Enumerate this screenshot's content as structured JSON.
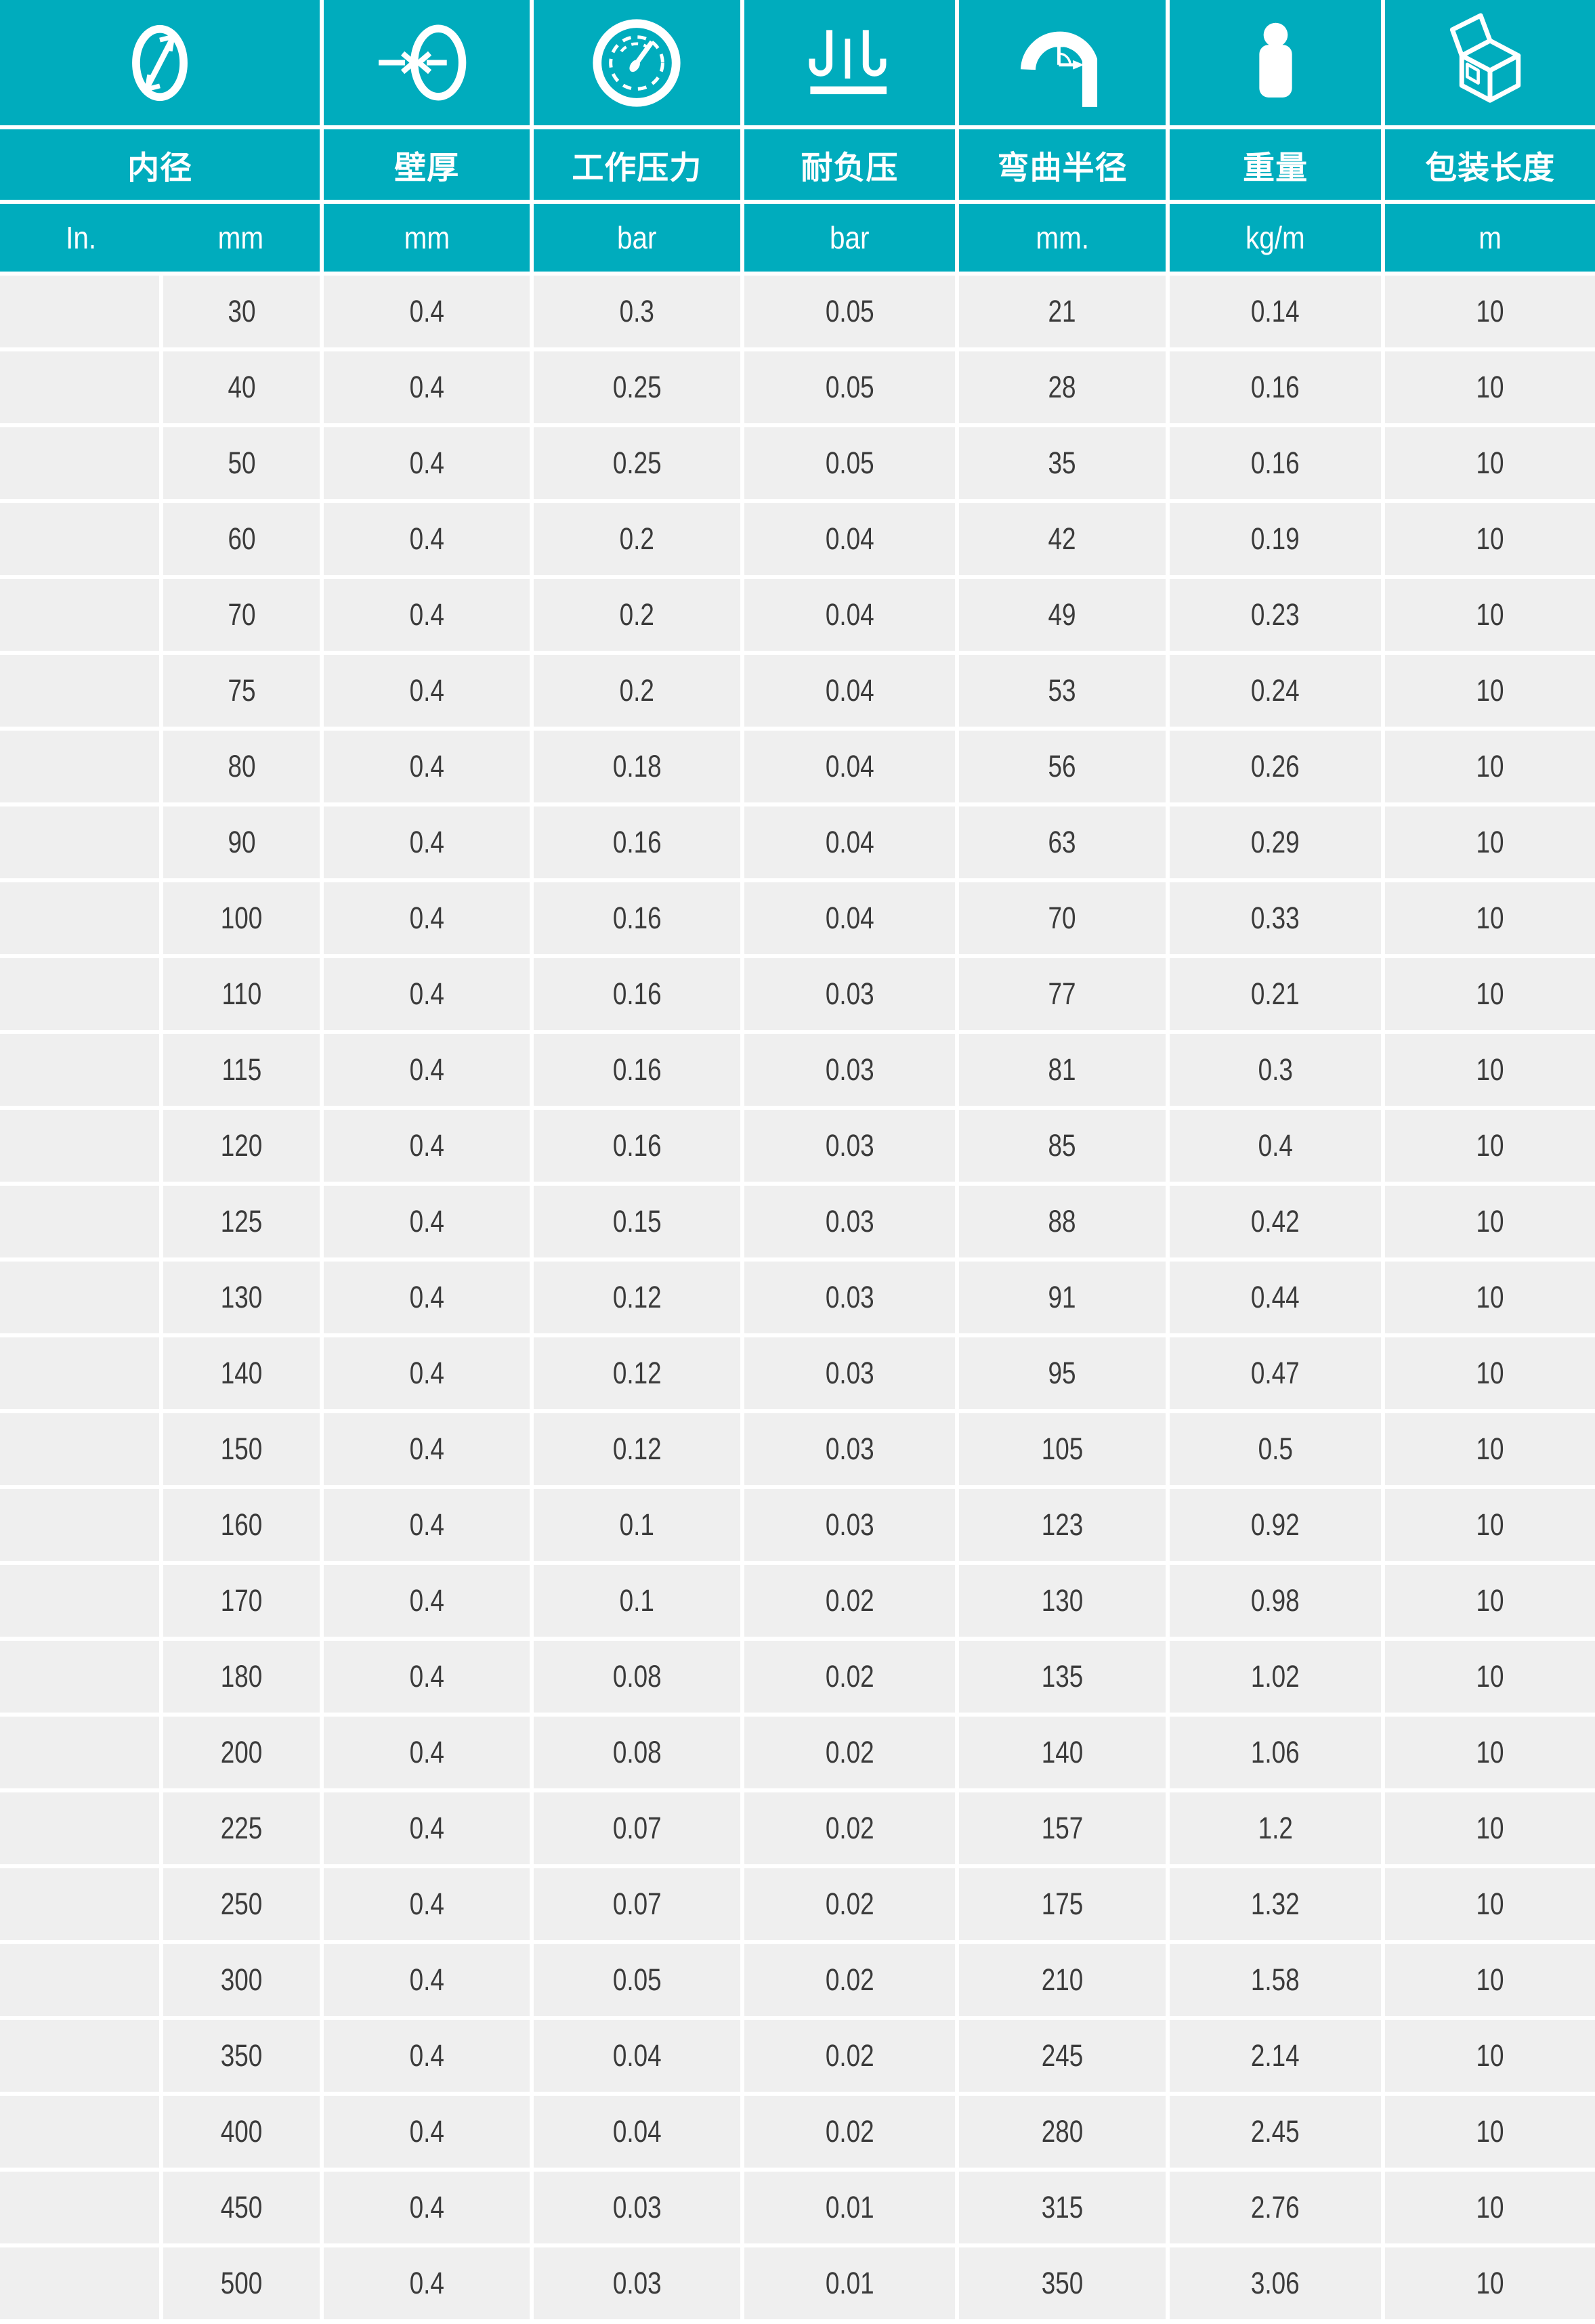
{
  "colors": {
    "teal": "#00ACBD",
    "row_bg": "#EFEFEF",
    "gap": "#FFFFFF",
    "data_text": "#3B3B3B",
    "header_text": "#FFFFFF"
  },
  "columns": [
    {
      "id": "inner-diameter",
      "icon": "diameter-icon",
      "label": "内径",
      "units": [
        "In.",
        "mm"
      ]
    },
    {
      "id": "wall-thickness",
      "icon": "wall-thickness-icon",
      "label": "壁厚",
      "units": [
        "mm"
      ]
    },
    {
      "id": "working-pressure",
      "icon": "pressure-gauge-icon",
      "label": "工作压力",
      "units": [
        "bar"
      ]
    },
    {
      "id": "vacuum-resistance",
      "icon": "vacuum-icon",
      "label": "耐负压",
      "units": [
        "bar"
      ]
    },
    {
      "id": "bend-radius",
      "icon": "bend-radius-icon",
      "label": "弯曲半径",
      "units": [
        "mm."
      ]
    },
    {
      "id": "weight",
      "icon": "weight-icon",
      "label": "重量",
      "units": [
        "kg/m"
      ]
    },
    {
      "id": "package-length",
      "icon": "package-icon",
      "label": "包装长度",
      "units": [
        "m"
      ]
    }
  ],
  "rows": [
    [
      "",
      "30",
      "0.4",
      "0.3",
      "0.05",
      "21",
      "0.14",
      "10"
    ],
    [
      "",
      "40",
      "0.4",
      "0.25",
      "0.05",
      "28",
      "0.16",
      "10"
    ],
    [
      "",
      "50",
      "0.4",
      "0.25",
      "0.05",
      "35",
      "0.16",
      "10"
    ],
    [
      "",
      "60",
      "0.4",
      "0.2",
      "0.04",
      "42",
      "0.19",
      "10"
    ],
    [
      "",
      "70",
      "0.4",
      "0.2",
      "0.04",
      "49",
      "0.23",
      "10"
    ],
    [
      "",
      "75",
      "0.4",
      "0.2",
      "0.04",
      "53",
      "0.24",
      "10"
    ],
    [
      "",
      "80",
      "0.4",
      "0.18",
      "0.04",
      "56",
      "0.26",
      "10"
    ],
    [
      "",
      "90",
      "0.4",
      "0.16",
      "0.04",
      "63",
      "0.29",
      "10"
    ],
    [
      "",
      "100",
      "0.4",
      "0.16",
      "0.04",
      "70",
      "0.33",
      "10"
    ],
    [
      "",
      "110",
      "0.4",
      "0.16",
      "0.03",
      "77",
      "0.21",
      "10"
    ],
    [
      "",
      "115",
      "0.4",
      "0.16",
      "0.03",
      "81",
      "0.3",
      "10"
    ],
    [
      "",
      "120",
      "0.4",
      "0.16",
      "0.03",
      "85",
      "0.4",
      "10"
    ],
    [
      "",
      "125",
      "0.4",
      "0.15",
      "0.03",
      "88",
      "0.42",
      "10"
    ],
    [
      "",
      "130",
      "0.4",
      "0.12",
      "0.03",
      "91",
      "0.44",
      "10"
    ],
    [
      "",
      "140",
      "0.4",
      "0.12",
      "0.03",
      "95",
      "0.47",
      "10"
    ],
    [
      "",
      "150",
      "0.4",
      "0.12",
      "0.03",
      "105",
      "0.5",
      "10"
    ],
    [
      "",
      "160",
      "0.4",
      "0.1",
      "0.03",
      "123",
      "0.92",
      "10"
    ],
    [
      "",
      "170",
      "0.4",
      "0.1",
      "0.02",
      "130",
      "0.98",
      "10"
    ],
    [
      "",
      "180",
      "0.4",
      "0.08",
      "0.02",
      "135",
      "1.02",
      "10"
    ],
    [
      "",
      "200",
      "0.4",
      "0.08",
      "0.02",
      "140",
      "1.06",
      "10"
    ],
    [
      "",
      "225",
      "0.4",
      "0.07",
      "0.02",
      "157",
      "1.2",
      "10"
    ],
    [
      "",
      "250",
      "0.4",
      "0.07",
      "0.02",
      "175",
      "1.32",
      "10"
    ],
    [
      "",
      "300",
      "0.4",
      "0.05",
      "0.02",
      "210",
      "1.58",
      "10"
    ],
    [
      "",
      "350",
      "0.4",
      "0.04",
      "0.02",
      "245",
      "2.14",
      "10"
    ],
    [
      "",
      "400",
      "0.4",
      "0.04",
      "0.02",
      "280",
      "2.45",
      "10"
    ],
    [
      "",
      "450",
      "0.4",
      "0.03",
      "0.01",
      "315",
      "2.76",
      "10"
    ],
    [
      "",
      "500",
      "0.4",
      "0.03",
      "0.01",
      "350",
      "3.06",
      "10"
    ]
  ]
}
